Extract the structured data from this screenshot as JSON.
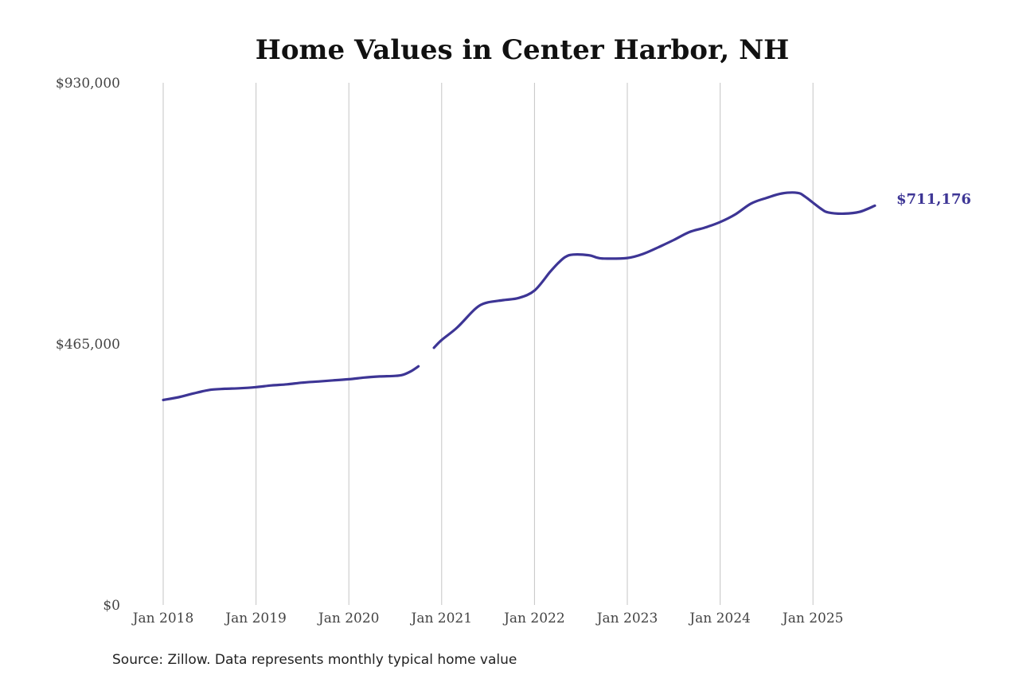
{
  "chart_data": {
    "type": "line",
    "title": "Home Values in Center Harbor, NH",
    "xlabel": "",
    "ylabel": "",
    "ylim": [
      0,
      930000
    ],
    "y_ticks": [
      {
        "value": 0,
        "label": "$0"
      },
      {
        "value": 465000,
        "label": "$465,000"
      },
      {
        "value": 930000,
        "label": "$930,000"
      }
    ],
    "x_ticks": [
      {
        "value": 2018,
        "label": "Jan 2018"
      },
      {
        "value": 2019,
        "label": "Jan 2019"
      },
      {
        "value": 2020,
        "label": "Jan 2020"
      },
      {
        "value": 2021,
        "label": "Jan 2021"
      },
      {
        "value": 2022,
        "label": "Jan 2022"
      },
      {
        "value": 2023,
        "label": "Jan 2023"
      },
      {
        "value": 2024,
        "label": "Jan 2024"
      },
      {
        "value": 2025,
        "label": "Jan 2025"
      }
    ],
    "xlim": [
      2017.9,
      2026.5
    ],
    "grid": "vertical",
    "legend": "none",
    "line_color": "#3d3595",
    "series": [
      {
        "segments": [
          [
            [
              "Jan 2018",
              365000
            ],
            [
              "Mar 2018",
              370000
            ],
            [
              "May 2018",
              377000
            ],
            [
              "Jul 2018",
              383000
            ],
            [
              "Sep 2018",
              385000
            ],
            [
              "Nov 2018",
              386000
            ],
            [
              "Jan 2019",
              388000
            ],
            [
              "Mar 2019",
              391000
            ],
            [
              "May 2019",
              393000
            ],
            [
              "Jul 2019",
              396000
            ],
            [
              "Sep 2019",
              398000
            ],
            [
              "Nov 2019",
              400000
            ],
            [
              "Jan 2020",
              402000
            ],
            [
              "Mar 2020",
              405000
            ],
            [
              "May 2020",
              407000
            ],
            [
              "Jul 2020",
              408000
            ],
            [
              "Aug 2020",
              410000
            ],
            [
              "Sep 2020",
              416000
            ],
            [
              "Oct 2020",
              425000
            ]
          ],
          [
            [
              "Dec 2020",
              458000
            ],
            [
              "Jan 2021",
              472000
            ],
            [
              "Mar 2021",
              494000
            ],
            [
              "May 2021",
              523000
            ],
            [
              "Jun 2021",
              534000
            ],
            [
              "Jul 2021",
              539000
            ],
            [
              "Sep 2021",
              543000
            ],
            [
              "Nov 2021",
              547000
            ],
            [
              "Jan 2022",
              560000
            ],
            [
              "Mar 2022",
              593000
            ],
            [
              "Apr 2022",
              608000
            ],
            [
              "May 2022",
              620000
            ],
            [
              "Jun 2022",
              624000
            ],
            [
              "Aug 2022",
              623000
            ],
            [
              "Sep 2022",
              619000
            ],
            [
              "Oct 2022",
              617000
            ],
            [
              "Jan 2023",
              618000
            ],
            [
              "Mar 2023",
              625000
            ],
            [
              "May 2023",
              637000
            ],
            [
              "Jul 2023",
              650000
            ],
            [
              "Sep 2023",
              664000
            ],
            [
              "Nov 2023",
              672000
            ],
            [
              "Jan 2024",
              682000
            ],
            [
              "Mar 2024",
              696000
            ],
            [
              "May 2024",
              715000
            ],
            [
              "Jul 2024",
              725000
            ],
            [
              "Sep 2024",
              733000
            ],
            [
              "Nov 2024",
              734000
            ],
            [
              "Dec 2024",
              727000
            ],
            [
              "Feb 2025",
              706000
            ],
            [
              "Mar 2025",
              699000
            ],
            [
              "May 2025",
              697000
            ],
            [
              "Jul 2025",
              700000
            ],
            [
              "Sep 2025",
              711176
            ]
          ]
        ]
      }
    ],
    "end_label": "$711,176",
    "source": "Source: Zillow. Data represents monthly typical home value"
  }
}
